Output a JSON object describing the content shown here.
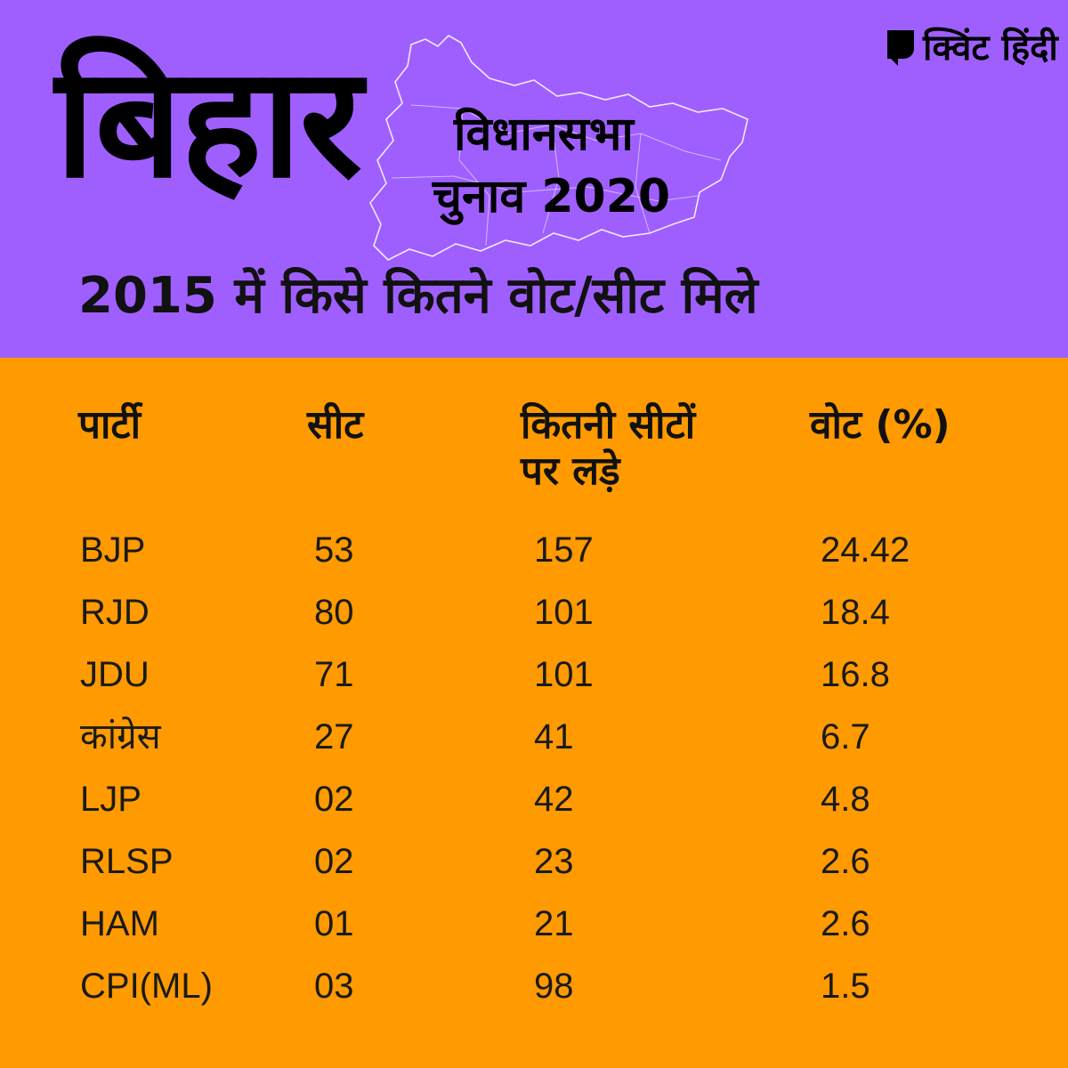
{
  "header": {
    "state": "बिहार",
    "subtitle_line1": "विधानसभा",
    "subtitle_line2": "चुनाव 2020",
    "headline": "2015 में किसे कितने वोट/सीट मिले",
    "logo_text": "क्विंट हिंदी",
    "background_color": "#9f5fff"
  },
  "table": {
    "background_color": "#ff9a00",
    "columns": {
      "party": "पार्टी",
      "seats": "सीट",
      "contested_line1": "कितनी सीटों",
      "contested_line2": "पर लड़े",
      "vote": "वोट (%)"
    },
    "rows": [
      {
        "party": "BJP",
        "seats": "53",
        "contested": "157",
        "vote": "24.42"
      },
      {
        "party": "RJD",
        "seats": "80",
        "contested": "101",
        "vote": "18.4"
      },
      {
        "party": "JDU",
        "seats": "71",
        "contested": "101",
        "vote": "16.8"
      },
      {
        "party": "कांग्रेस",
        "seats": "27",
        "contested": "41",
        "vote": "6.7"
      },
      {
        "party": "LJP",
        "seats": "02",
        "contested": "42",
        "vote": "4.8"
      },
      {
        "party": "RLSP",
        "seats": "02",
        "contested": "23",
        "vote": "2.6"
      },
      {
        "party": "HAM",
        "seats": "01",
        "contested": "21",
        "vote": "2.6"
      },
      {
        "party": "CPI(ML)",
        "seats": "03",
        "contested": "98",
        "vote": "1.5"
      }
    ]
  }
}
